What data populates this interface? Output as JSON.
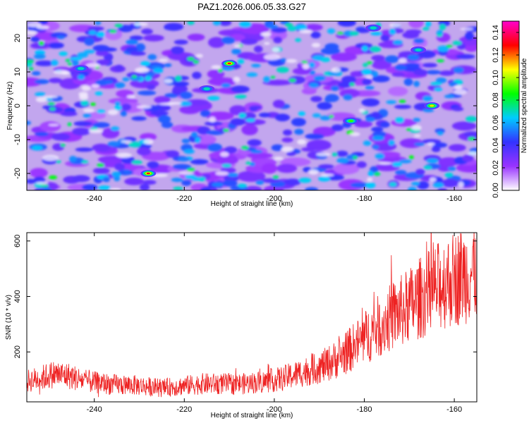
{
  "chart_data": [
    {
      "type": "heatmap",
      "title": "PAZ1.2026.006.05.33.G27",
      "xlabel": "Height of straight line (km)",
      "ylabel": "Frequency (Hz)",
      "xlim": [
        -255,
        -155
      ],
      "ylim": [
        -25,
        25
      ],
      "x_ticks": [
        -240,
        -220,
        -200,
        -180,
        -160
      ],
      "y_ticks": [
        -20,
        -10,
        0,
        10,
        20
      ],
      "colorbar": {
        "label": "Normalized spectral amplitude",
        "range": [
          0,
          0.15
        ],
        "ticks": [
          "0.00",
          "0.02",
          "0.04",
          "0.06",
          "0.08",
          "0.10",
          "0.12",
          "0.14"
        ],
        "colormap": [
          "#ffffff",
          "#9933ff",
          "#3333ff",
          "#00ccff",
          "#00ff00",
          "#ffff00",
          "#ff0000",
          "#ff00cc"
        ]
      },
      "hotspots": [
        {
          "x": -210,
          "y": 12.5,
          "value": 0.13
        },
        {
          "x": -228,
          "y": -20,
          "value": 0.14
        },
        {
          "x": -165,
          "y": 0,
          "value": 0.11
        },
        {
          "x": -168,
          "y": 16.5,
          "value": 0.08
        },
        {
          "x": -215,
          "y": 5,
          "value": 0.08
        },
        {
          "x": -183,
          "y": -4.5,
          "value": 0.09
        },
        {
          "x": -243,
          "y": 11,
          "value": 0.08
        },
        {
          "x": -178,
          "y": 23,
          "value": 0.07
        }
      ]
    },
    {
      "type": "line",
      "xlabel": "Height of straight line (km)",
      "ylabel": "SNR (10 * v/v)",
      "xlim": [
        -255,
        -155
      ],
      "ylim": [
        20,
        630
      ],
      "x_ticks": [
        -240,
        -220,
        -200,
        -180,
        -160
      ],
      "y_ticks": [
        200,
        400,
        600
      ],
      "series": [
        {
          "name": "SNR",
          "color": "#ee2222",
          "x": [
            -255,
            -252,
            -249,
            -246,
            -243,
            -240,
            -237,
            -234,
            -231,
            -228,
            -225,
            -222,
            -219,
            -216,
            -213,
            -210,
            -207,
            -204,
            -201,
            -198,
            -195,
            -192,
            -189,
            -186,
            -183,
            -180,
            -177,
            -174,
            -171,
            -168,
            -165,
            -162,
            -159,
            -156,
            -155
          ],
          "y": [
            95,
            105,
            120,
            115,
            100,
            90,
            85,
            80,
            80,
            75,
            70,
            75,
            80,
            85,
            85,
            85,
            85,
            90,
            95,
            105,
            120,
            135,
            150,
            175,
            210,
            250,
            290,
            325,
            355,
            390,
            420,
            450,
            470,
            490,
            495
          ]
        }
      ]
    }
  ]
}
